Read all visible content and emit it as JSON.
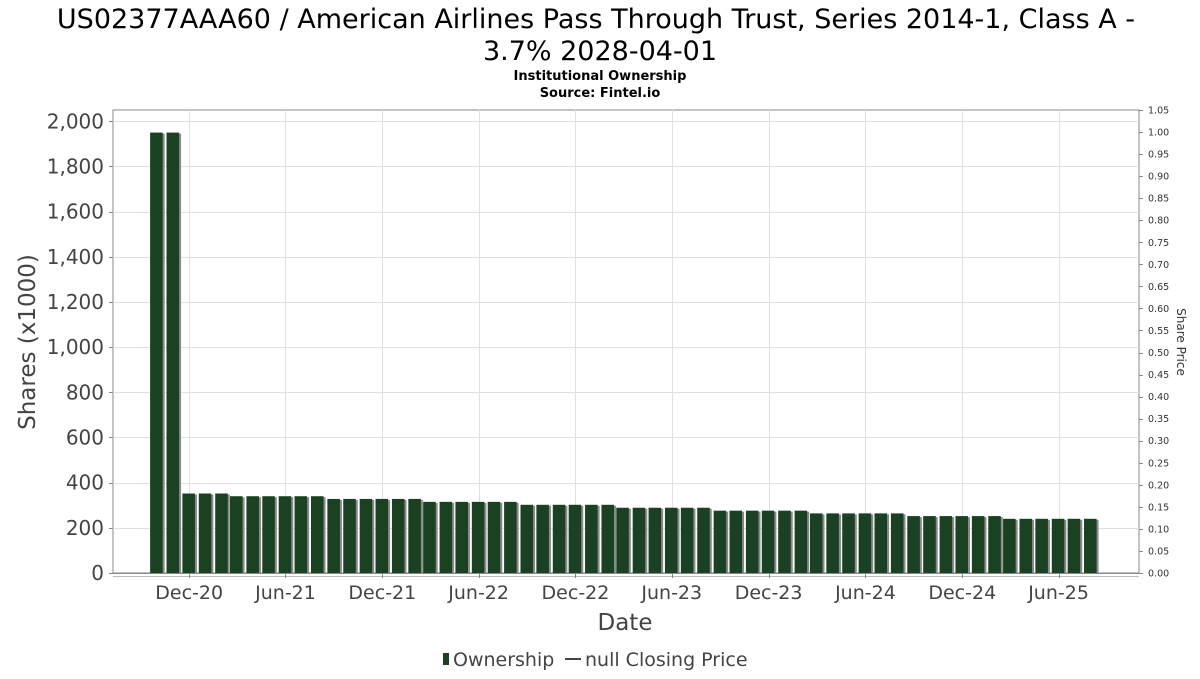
{
  "chart_data": {
    "type": "bar",
    "title_line1": "US02377AAA60 / American Airlines Pass Through Trust, Series 2014-1, Class A -",
    "title_line2": "3.7% 2028-04-01",
    "subtitle": "Institutional Ownership",
    "source": "Source: Fintel.io",
    "xlabel": "Date",
    "ylabel": "Shares (x1000)",
    "y2label": "Share Price",
    "ylim": [
      0,
      2050
    ],
    "y2lim": [
      0,
      1.05
    ],
    "yticks": [
      "0",
      "200",
      "400",
      "600",
      "800",
      "1,000",
      "1,200",
      "1,400",
      "1,600",
      "1,800",
      "2,000"
    ],
    "ytick_values": [
      0,
      200,
      400,
      600,
      800,
      1000,
      1200,
      1400,
      1600,
      1800,
      2000
    ],
    "y2ticks": [
      "0.00",
      "0.05",
      "0.10",
      "0.15",
      "0.20",
      "0.25",
      "0.30",
      "0.35",
      "0.40",
      "0.45",
      "0.50",
      "0.55",
      "0.60",
      "0.65",
      "0.70",
      "0.75",
      "0.80",
      "0.85",
      "0.90",
      "0.95",
      "1.00",
      "1.05"
    ],
    "x_range": [
      "2020-07-10",
      "2025-10-31"
    ],
    "xticks": [
      {
        "label": "Dec-20",
        "date": "2020-12-01"
      },
      {
        "label": "Jun-21",
        "date": "2021-06-01"
      },
      {
        "label": "Dec-21",
        "date": "2021-12-01"
      },
      {
        "label": "Jun-22",
        "date": "2022-06-01"
      },
      {
        "label": "Dec-22",
        "date": "2022-12-01"
      },
      {
        "label": "Jun-23",
        "date": "2023-06-01"
      },
      {
        "label": "Dec-23",
        "date": "2023-12-01"
      },
      {
        "label": "Jun-24",
        "date": "2024-06-01"
      },
      {
        "label": "Dec-24",
        "date": "2024-12-01"
      },
      {
        "label": "Jun-25",
        "date": "2025-06-01"
      }
    ],
    "grid": true,
    "legend_position": "bottom-center",
    "series": [
      {
        "name": "Ownership",
        "color": "#1a4222",
        "points": [
          {
            "date": "2020-09-30",
            "value": 1950
          },
          {
            "date": "2020-10-31",
            "value": 1950
          },
          {
            "date": "2020-11-30",
            "value": 352
          },
          {
            "date": "2020-12-31",
            "value": 352
          },
          {
            "date": "2021-01-31",
            "value": 352
          },
          {
            "date": "2021-02-28",
            "value": 340
          },
          {
            "date": "2021-03-31",
            "value": 340
          },
          {
            "date": "2021-04-30",
            "value": 340
          },
          {
            "date": "2021-05-31",
            "value": 340
          },
          {
            "date": "2021-06-30",
            "value": 340
          },
          {
            "date": "2021-07-31",
            "value": 340
          },
          {
            "date": "2021-08-31",
            "value": 328
          },
          {
            "date": "2021-09-30",
            "value": 328
          },
          {
            "date": "2021-10-31",
            "value": 328
          },
          {
            "date": "2021-11-30",
            "value": 328
          },
          {
            "date": "2021-12-31",
            "value": 328
          },
          {
            "date": "2022-01-31",
            "value": 328
          },
          {
            "date": "2022-02-28",
            "value": 315
          },
          {
            "date": "2022-03-31",
            "value": 315
          },
          {
            "date": "2022-04-30",
            "value": 315
          },
          {
            "date": "2022-05-31",
            "value": 315
          },
          {
            "date": "2022-06-30",
            "value": 315
          },
          {
            "date": "2022-07-31",
            "value": 315
          },
          {
            "date": "2022-08-31",
            "value": 302
          },
          {
            "date": "2022-09-30",
            "value": 302
          },
          {
            "date": "2022-10-31",
            "value": 302
          },
          {
            "date": "2022-11-30",
            "value": 302
          },
          {
            "date": "2022-12-31",
            "value": 302
          },
          {
            "date": "2023-01-31",
            "value": 302
          },
          {
            "date": "2023-02-28",
            "value": 289
          },
          {
            "date": "2023-03-31",
            "value": 289
          },
          {
            "date": "2023-04-30",
            "value": 289
          },
          {
            "date": "2023-05-31",
            "value": 289
          },
          {
            "date": "2023-06-30",
            "value": 289
          },
          {
            "date": "2023-07-31",
            "value": 289
          },
          {
            "date": "2023-08-31",
            "value": 276
          },
          {
            "date": "2023-09-30",
            "value": 276
          },
          {
            "date": "2023-10-31",
            "value": 276
          },
          {
            "date": "2023-11-30",
            "value": 276
          },
          {
            "date": "2023-12-31",
            "value": 276
          },
          {
            "date": "2024-01-31",
            "value": 276
          },
          {
            "date": "2024-02-29",
            "value": 264
          },
          {
            "date": "2024-03-31",
            "value": 264
          },
          {
            "date": "2024-04-30",
            "value": 264
          },
          {
            "date": "2024-05-31",
            "value": 264
          },
          {
            "date": "2024-06-30",
            "value": 264
          },
          {
            "date": "2024-07-31",
            "value": 264
          },
          {
            "date": "2024-08-31",
            "value": 252
          },
          {
            "date": "2024-09-30",
            "value": 252
          },
          {
            "date": "2024-10-31",
            "value": 252
          },
          {
            "date": "2024-11-30",
            "value": 252
          },
          {
            "date": "2024-12-31",
            "value": 252
          },
          {
            "date": "2025-01-31",
            "value": 252
          },
          {
            "date": "2025-02-28",
            "value": 240
          },
          {
            "date": "2025-03-31",
            "value": 240
          },
          {
            "date": "2025-04-30",
            "value": 240
          },
          {
            "date": "2025-05-31",
            "value": 240
          },
          {
            "date": "2025-06-30",
            "value": 240
          },
          {
            "date": "2025-07-31",
            "value": 240
          }
        ]
      },
      {
        "name": "null Closing Price",
        "color": "#444444",
        "points": []
      }
    ]
  }
}
